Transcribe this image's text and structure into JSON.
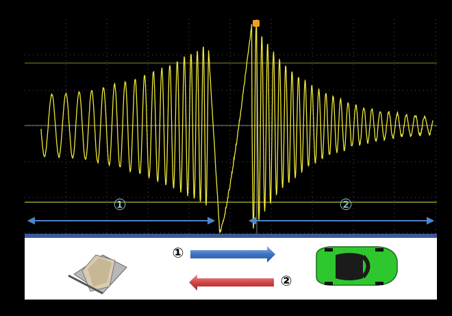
{
  "scope": {
    "markers": [
      "①",
      "②"
    ]
  },
  "diagram": {
    "arrows": [
      {
        "label": "①"
      },
      {
        "label": "②"
      }
    ]
  }
}
